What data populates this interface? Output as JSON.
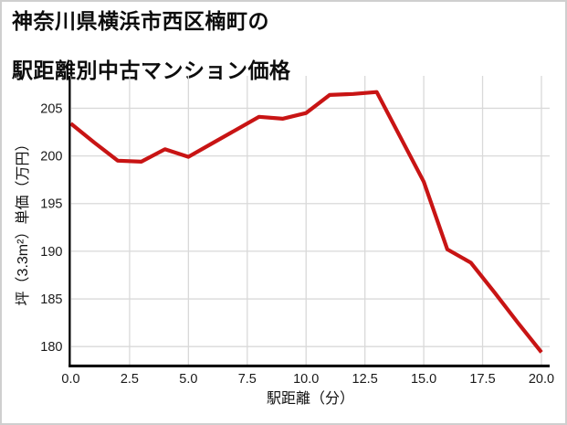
{
  "title": {
    "line1": "神奈川県横浜市西区楠町の",
    "line2": "駅距離別中古マンション価格"
  },
  "chart_data": {
    "type": "line",
    "title": "神奈川県横浜市西区楠町の駅距離別中古マンション価格",
    "xlabel": "駅距離（分）",
    "ylabel": "坪（3.3m²）単価（万円）",
    "x": [
      0,
      1,
      2,
      3,
      4,
      5,
      6,
      7,
      8,
      9,
      10,
      11,
      12,
      13,
      14,
      15,
      16,
      17,
      18,
      19,
      20
    ],
    "y": [
      203.4,
      201.4,
      199.5,
      199.4,
      200.7,
      199.9,
      201.3,
      202.7,
      204.1,
      203.9,
      204.5,
      206.4,
      206.5,
      206.7,
      202.0,
      197.3,
      190.2,
      188.8,
      185.7,
      182.5,
      179.4
    ],
    "x_ticks": [
      0,
      2.5,
      5,
      7.5,
      10,
      12.5,
      15,
      17.5,
      20
    ],
    "x_tick_labels": [
      "0.0",
      "2.5",
      "5.0",
      "7.5",
      "10.0",
      "12.5",
      "15.0",
      "17.5",
      "20.0"
    ],
    "y_ticks": [
      180,
      185,
      190,
      195,
      200,
      205
    ],
    "y_tick_labels": [
      "180",
      "185",
      "190",
      "195",
      "200",
      "205"
    ],
    "xlim": [
      0,
      20.35
    ],
    "ylim": [
      178.1,
      208.4
    ],
    "grid": true,
    "legend_position": "none",
    "line_color": "#c81414",
    "grid_color": "#d9d9d9",
    "axis_color": "#000000",
    "text_color": "#1a1a1a",
    "background": "#ffffff"
  }
}
